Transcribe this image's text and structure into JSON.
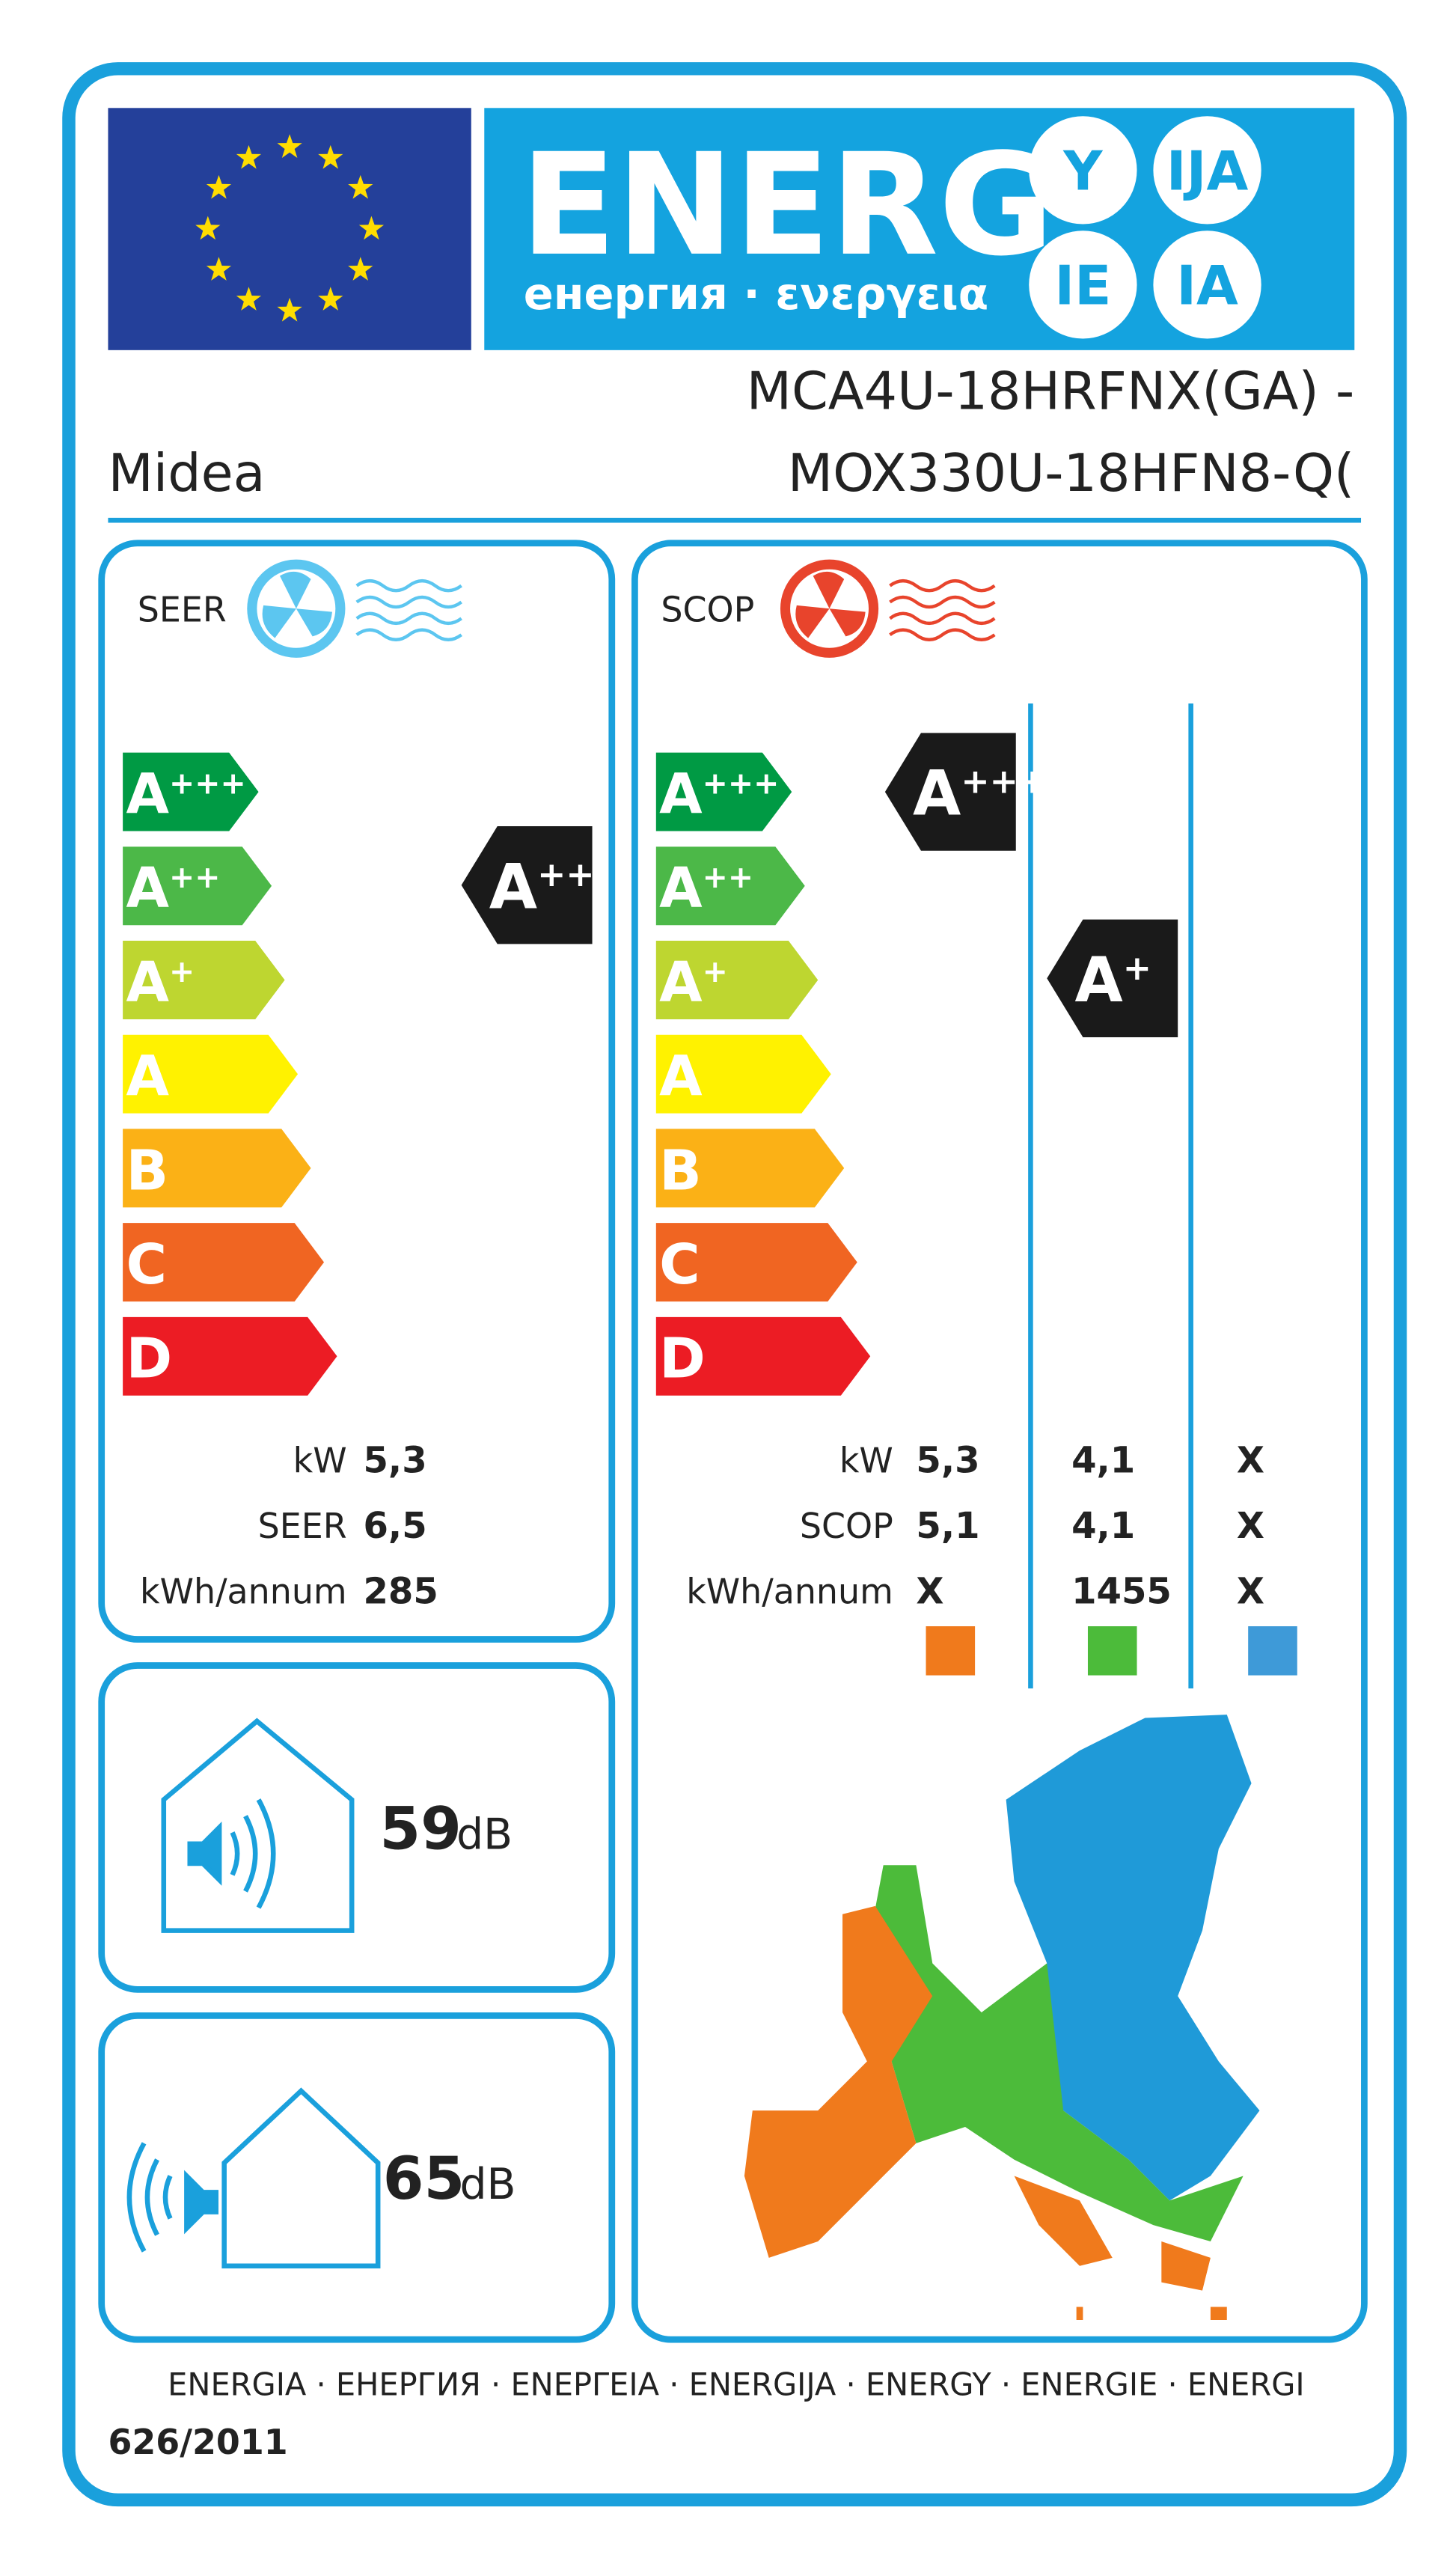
{
  "header": {
    "title": "ENERG",
    "subtitle": "енергия · ενεργεια",
    "suffixes": [
      "Y",
      "IJA",
      "IE",
      "IA"
    ]
  },
  "supplier": "Midea",
  "model": [
    "MCA4U-18HRFNX(GA) -",
    "MOX330U-18HFN8-Q("
  ],
  "classes": [
    {
      "letter": "A",
      "sup": "+++"
    },
    {
      "letter": "A",
      "sup": "++"
    },
    {
      "letter": "A",
      "sup": "+"
    },
    {
      "letter": "A"
    },
    {
      "letter": "B"
    },
    {
      "letter": "C"
    },
    {
      "letter": "D"
    }
  ],
  "cooling": {
    "label": "SEER",
    "rating": {
      "letter": "A",
      "sup": "++"
    },
    "rows": [
      {
        "label": "kW",
        "value": "5,3"
      },
      {
        "label": "SEER",
        "value": "6,5"
      },
      {
        "label": "kWh/annum",
        "value": "285"
      }
    ]
  },
  "heating": {
    "label": "SCOP",
    "ratings": [
      {
        "letter": "A",
        "sup": "+++"
      },
      {
        "letter": "A",
        "sup": "+"
      }
    ],
    "rows": [
      {
        "label": "kW",
        "values": [
          "5,3",
          "4,1",
          "X"
        ]
      },
      {
        "label": "SCOP",
        "values": [
          "5,1",
          "4,1",
          "X"
        ]
      },
      {
        "label": "kWh/annum",
        "values": [
          "X",
          "1455",
          "X"
        ]
      }
    ]
  },
  "noise_indoor": {
    "value": "59",
    "unit": "dB"
  },
  "noise_outdoor": {
    "value": "65",
    "unit": "dB"
  },
  "footer": {
    "languages": "ENERGIA · ЕНЕРГИЯ · ΕΝΕΡΓΕΙΑ · ENERGIJA · ENERGY · ENERGIE · ENERGI",
    "regulation": "626/2011"
  }
}
